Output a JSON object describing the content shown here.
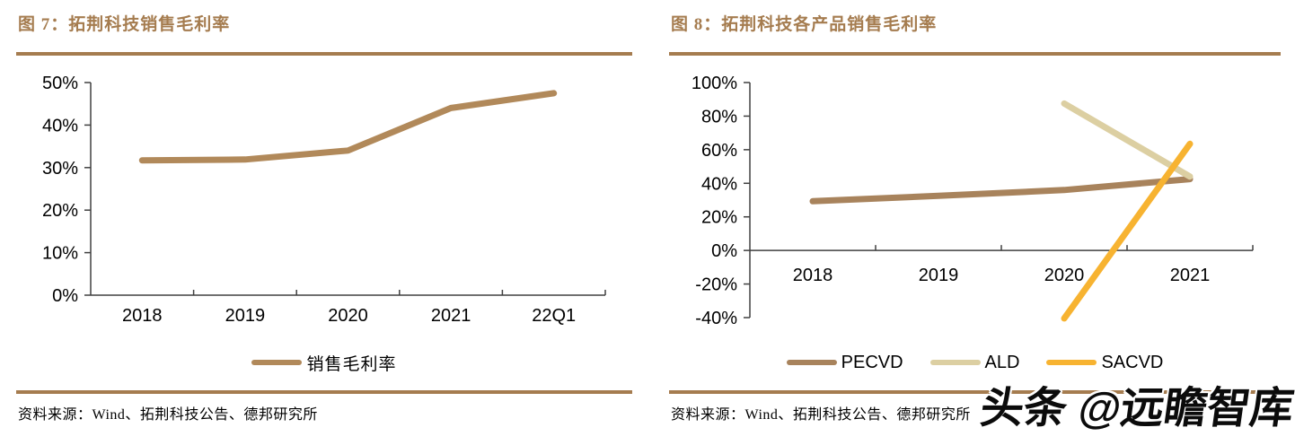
{
  "left_panel": {
    "title": "图 7：拓荆科技销售毛利率",
    "source": "资料来源：Wind、拓荆科技公告、德邦研究所"
  },
  "right_panel": {
    "title": "图 8：拓荆科技各产品销售毛利率",
    "source": "资料来源：Wind、拓荆科技公告、德邦研究所"
  },
  "watermark": "头条 @远瞻智库",
  "colors": {
    "accent_brown": "#a57c4f",
    "axis": "#404040",
    "left_line": "#b1895a",
    "pecvd": "#a8835c",
    "ald": "#dccfa2",
    "sacvd": "#f7b331"
  },
  "chart_data": [
    {
      "type": "line",
      "title": "拓荆科技销售毛利率",
      "categories": [
        "2018",
        "2019",
        "2020",
        "2021",
        "22Q1"
      ],
      "series": [
        {
          "name": "销售毛利率",
          "values": [
            31.7,
            31.9,
            34.0,
            44.0,
            47.5
          ],
          "color": "#b1895a"
        }
      ],
      "ylim": [
        0,
        50
      ],
      "ytick_step": 10,
      "ytick_labels": [
        "0%",
        "10%",
        "20%",
        "30%",
        "40%",
        "50%"
      ],
      "ytick_format": "percent",
      "grid": false,
      "legend_position": "bottom"
    },
    {
      "type": "line",
      "title": "拓荆科技各产品销售毛利率",
      "categories": [
        "2018",
        "2019",
        "2020",
        "2021"
      ],
      "series": [
        {
          "name": "PECVD",
          "values": [
            29.3,
            32.5,
            36.0,
            42.5
          ],
          "color": "#a8835c"
        },
        {
          "name": "ALD",
          "values": [
            null,
            null,
            87.5,
            44.0
          ],
          "color": "#dccfa2"
        },
        {
          "name": "SACVD",
          "values": [
            null,
            null,
            -40.5,
            63.5
          ],
          "color": "#f7b331"
        }
      ],
      "ylim": [
        -40,
        100
      ],
      "ytick_step": 20,
      "ytick_labels": [
        "-40%",
        "-20%",
        "0%",
        "20%",
        "40%",
        "60%",
        "80%",
        "100%"
      ],
      "ytick_format": "percent",
      "grid": false,
      "legend_position": "bottom"
    }
  ]
}
